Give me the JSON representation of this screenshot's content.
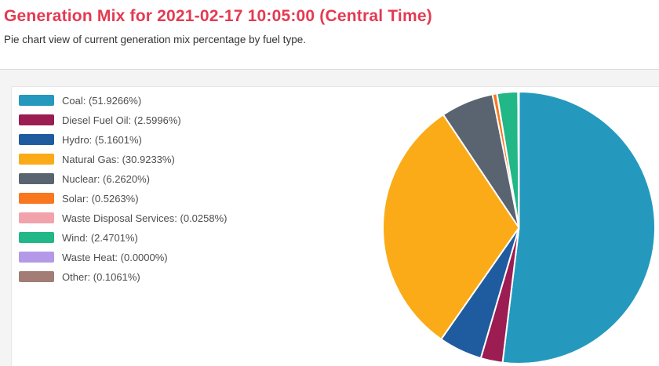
{
  "header": {
    "title": "Generation Mix for 2021-02-17 10:05:00 (Central Time)",
    "subtitle": "Pie chart view of current generation mix percentage by fuel type."
  },
  "colors": {
    "title_text": "#e43a52",
    "page_background": "#f4f4f4",
    "card_background": "#ffffff",
    "divider": "#dcdcdc",
    "legend_text": "#4d4d4d"
  },
  "chart_data": {
    "type": "pie",
    "title": "",
    "legend_position": "left",
    "start_angle_deg": 0,
    "direction": "clockwise",
    "slice_border_color": "#ffffff",
    "categories": [
      "Coal",
      "Diesel Fuel Oil",
      "Hydro",
      "Natural Gas",
      "Nuclear",
      "Solar",
      "Waste Disposal Services",
      "Wind",
      "Waste Heat",
      "Other"
    ],
    "values": [
      51.9266,
      2.5996,
      5.1601,
      30.9233,
      6.262,
      0.5263,
      0.0258,
      2.4701,
      0.0,
      0.1061
    ],
    "items": [
      {
        "id": "coal",
        "name": "Coal",
        "value": 51.9266,
        "label": "Coal: (51.9266%)",
        "color": "#2599bd"
      },
      {
        "id": "diesel-fuel-oil",
        "name": "Diesel Fuel Oil",
        "value": 2.5996,
        "label": "Diesel Fuel Oil: (2.5996%)",
        "color": "#9c1d51"
      },
      {
        "id": "hydro",
        "name": "Hydro",
        "value": 5.1601,
        "label": "Hydro: (5.1601%)",
        "color": "#1f5c9f"
      },
      {
        "id": "natural-gas",
        "name": "Natural Gas",
        "value": 30.9233,
        "label": "Natural Gas: (30.9233%)",
        "color": "#faab17"
      },
      {
        "id": "nuclear",
        "name": "Nuclear",
        "value": 6.262,
        "label": "Nuclear: (6.2620%)",
        "color": "#5a6470"
      },
      {
        "id": "solar",
        "name": "Solar",
        "value": 0.5263,
        "label": "Solar: (0.5263%)",
        "color": "#f8771f"
      },
      {
        "id": "waste-disposal-services",
        "name": "Waste Disposal Services",
        "value": 0.0258,
        "label": "Waste Disposal Services: (0.0258%)",
        "color": "#f2a2ab"
      },
      {
        "id": "wind",
        "name": "Wind",
        "value": 2.4701,
        "label": "Wind: (2.4701%)",
        "color": "#21b787"
      },
      {
        "id": "waste-heat",
        "name": "Waste Heat",
        "value": 0.0,
        "label": "Waste Heat: (0.0000%)",
        "color": "#b499e9"
      },
      {
        "id": "other",
        "name": "Other",
        "value": 0.1061,
        "label": "Other: (0.1061%)",
        "color": "#a37d75"
      }
    ]
  }
}
